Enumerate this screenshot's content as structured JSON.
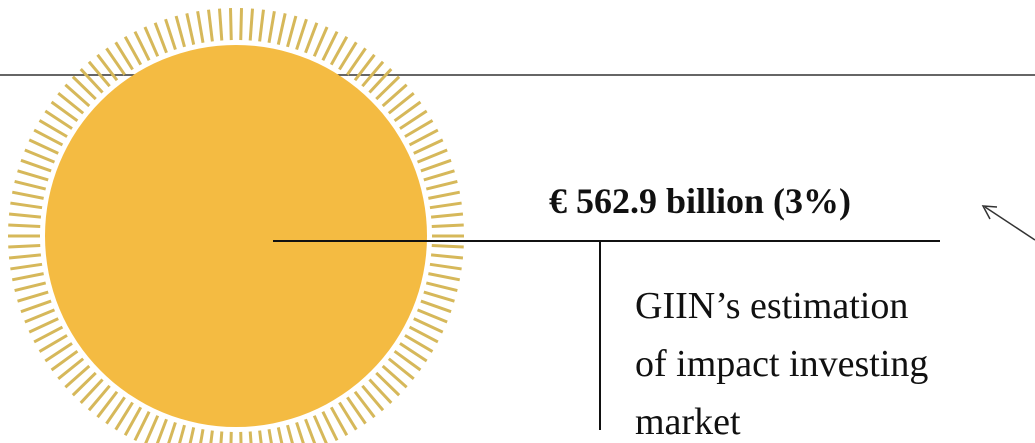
{
  "callout": {
    "amount": "€ 562.9 billion (3%)",
    "description": [
      "GIIN’s estimation",
      "of impact investing",
      "market"
    ]
  }
}
